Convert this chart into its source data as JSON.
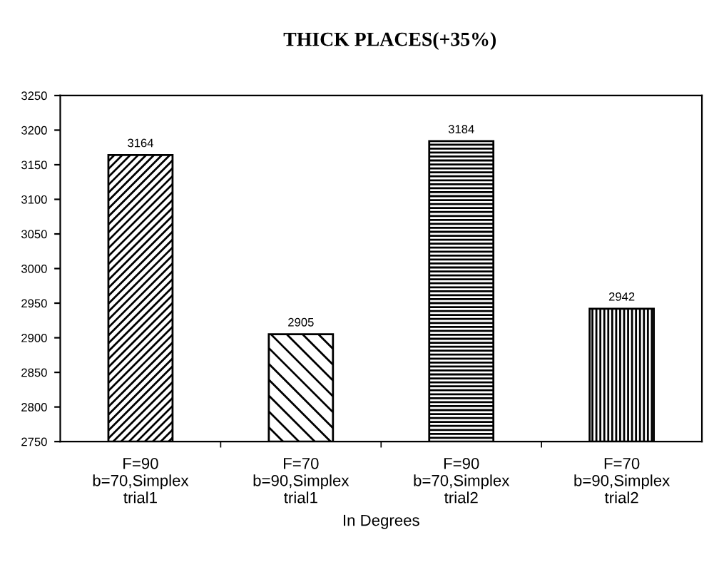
{
  "chart_data": {
    "type": "bar",
    "title": "THICK PLACES(+35%)",
    "categories": [
      "F=90\nb=70,Simplex\ntrial1",
      "F=70\nb=90,Simplex\ntrial1",
      "F=90\nb=70,Simplex\ntrial2",
      "F=70\nb=90,Simplex\ntrial2"
    ],
    "values": [
      3164,
      2905,
      3184,
      2942
    ],
    "color": "#000000",
    "xlabel": "In Degrees",
    "ylim": [
      2750,
      3250
    ],
    "yticks": [
      2750,
      2800,
      2850,
      2900,
      2950,
      3000,
      3050,
      3100,
      3150,
      3200,
      3250
    ],
    "data_labels": true,
    "grid": false,
    "legend": false
  }
}
